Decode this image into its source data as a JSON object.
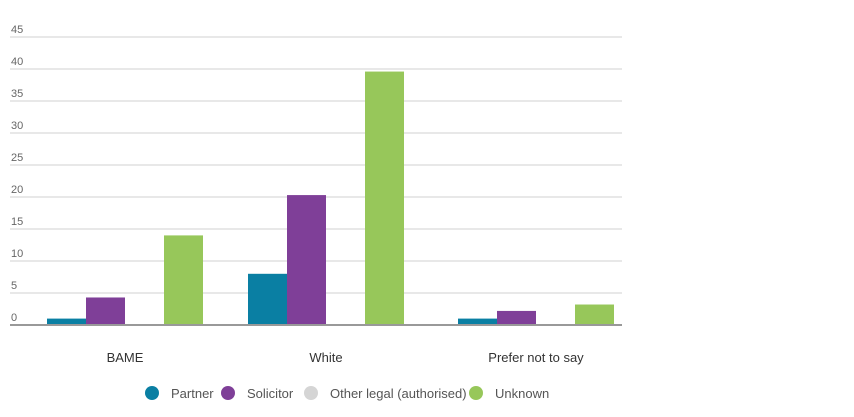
{
  "chart_data": {
    "type": "bar",
    "categories": [
      "BAME",
      "White",
      "Prefer not to say"
    ],
    "series": [
      {
        "name": "Partner",
        "values": [
          1,
          8,
          1
        ],
        "color": "#0a7fa3"
      },
      {
        "name": "Solicitor",
        "values": [
          4.3,
          20.3,
          2.2
        ],
        "color": "#7f3f98"
      },
      {
        "name": "Other legal (authorised)",
        "values": [
          0,
          0,
          0
        ],
        "color": "#d5d5d5"
      },
      {
        "name": "Unknown",
        "values": [
          14,
          39.6,
          3.2
        ],
        "color": "#97c75a"
      }
    ],
    "ylim": [
      0,
      45
    ],
    "yticks": [
      0,
      5,
      10,
      15,
      20,
      25,
      30,
      35,
      40,
      45
    ],
    "grid": true,
    "legend_position": "bottom-center",
    "title": "",
    "xlabel": "",
    "ylabel": ""
  }
}
